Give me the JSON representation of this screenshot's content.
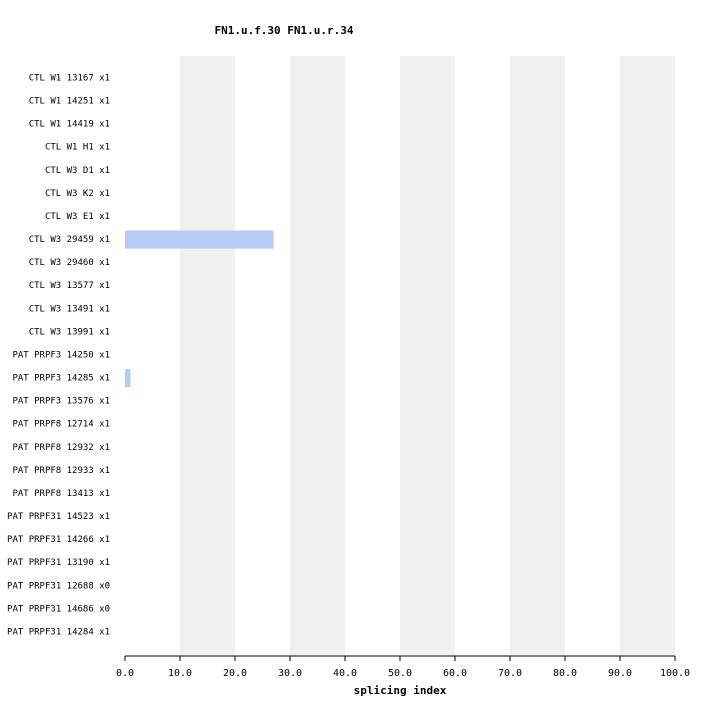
{
  "chart_data": {
    "type": "bar",
    "orientation": "horizontal",
    "title": "FN1.u.f.30  FN1.u.r.34",
    "x_label": "splicing index",
    "categories": [
      "CTL W1 13167 x1",
      "CTL W1 14251 x1",
      "CTL W1 14419 x1",
      "CTL W1 H1 x1",
      "CTL W3 D1 x1",
      "CTL W3 K2 x1",
      "CTL W3 E1 x1",
      "CTL W3 29459 x1",
      "CTL W3 29460 x1",
      "CTL W3 13577 x1",
      "CTL W3 13491 x1",
      "CTL W3 13991 x1",
      "PAT PRPF3 14250 x1",
      "PAT PRPF3 14285 x1",
      "PAT PRPF3 13576 x1",
      "PAT PRPF8 12714 x1",
      "PAT PRPF8 12932 x1",
      "PAT PRPF8 12933 x1",
      "PAT PRPF8 13413 x1",
      "PAT PRPF31 14523 x1",
      "PAT PRPF31 14266 x1",
      "PAT PRPF31 13190 x1",
      "PAT PRPF31 12688 x0",
      "PAT PRPF31 14686 x0",
      "PAT PRPF31 14284 x1"
    ],
    "values": [
      0,
      0,
      0,
      0,
      0,
      0,
      0,
      27,
      0,
      0,
      0,
      0,
      0,
      1,
      0,
      0,
      0,
      0,
      0,
      0,
      0,
      0,
      0,
      0,
      0
    ],
    "color": "#b3cbf7",
    "xlim": [
      0,
      100
    ],
    "xticks": [
      {
        "value": 0,
        "label": "0.0"
      },
      {
        "value": 10,
        "label": "10.0"
      },
      {
        "value": 20,
        "label": "20.0"
      },
      {
        "value": 30,
        "label": "30.0"
      },
      {
        "value": 40,
        "label": "40.0"
      },
      {
        "value": 50,
        "label": "50.0"
      },
      {
        "value": 60,
        "label": "60.0"
      },
      {
        "value": 70,
        "label": "70.0"
      },
      {
        "value": 80,
        "label": "80.0"
      },
      {
        "value": 90,
        "label": "90.0"
      },
      {
        "value": 100,
        "label": "100.0"
      }
    ],
    "stripe_color": "#f0f0f0"
  }
}
